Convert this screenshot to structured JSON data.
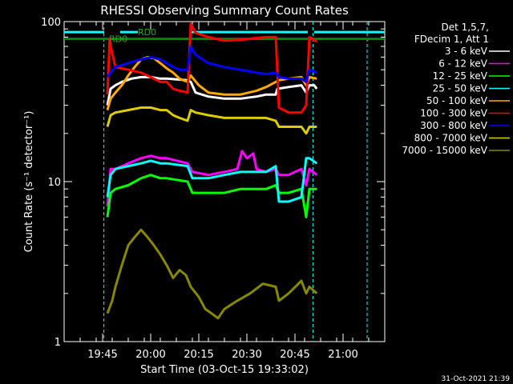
{
  "chart_data": {
    "type": "line",
    "title": "RHESSI Observing Summary Count Rates",
    "xlabel": "Start Time (03-Oct-15 19:33:02)",
    "ylabel": "Count Rate (s⁻¹ detector⁻¹)",
    "y_scale": "log",
    "ylim": [
      1,
      100
    ],
    "yticks": [
      {
        "value": 1,
        "label": "1"
      },
      {
        "value": 10,
        "label": "10"
      },
      {
        "value": 100,
        "label": "100"
      }
    ],
    "x_unit": "minutes since 19:33:02",
    "xlim": [
      0,
      100
    ],
    "xticks": [
      {
        "value": 12,
        "label": "19:45"
      },
      {
        "value": 27,
        "label": "20:00"
      },
      {
        "value": 42,
        "label": "20:15"
      },
      {
        "value": 57,
        "label": "20:30"
      },
      {
        "value": 72,
        "label": "20:45"
      },
      {
        "value": 87,
        "label": "21:00"
      }
    ],
    "legend_header": [
      "Det 1,5,7,",
      "FDecim 1, Att 1"
    ],
    "legend_position": "right",
    "annotations": [
      {
        "text": "RD0",
        "x": 14.0,
        "y": 78,
        "color": "#00bb00"
      },
      {
        "text": "RD0",
        "x": 23.0,
        "y": 86,
        "color": "#00bb00"
      }
    ],
    "footer": "31-Oct-2021 21:39",
    "series": [
      {
        "name": "3 - 6 keV",
        "color": "#ffffff",
        "x": [
          13.5,
          14.5,
          16,
          18,
          21,
          24,
          27,
          30,
          32,
          38.5,
          39.5,
          41,
          45,
          50,
          55,
          60,
          63,
          66,
          66.5,
          70,
          74,
          75.5,
          76.5,
          78,
          78.8
        ],
        "y": [
          30,
          38,
          40,
          42,
          44,
          45,
          45,
          44,
          44,
          43,
          42,
          36,
          34,
          33,
          33,
          34,
          35,
          35,
          38,
          39,
          40,
          36,
          40,
          40,
          38
        ]
      },
      {
        "name": "6 - 12 keV",
        "color": "#ff00ff",
        "x": [
          13.5,
          14.5,
          16,
          20,
          24,
          27,
          30,
          32,
          38.5,
          40,
          45,
          50,
          54,
          55.5,
          57,
          59,
          60,
          63,
          66,
          67,
          70,
          74,
          75.5,
          76.5,
          78.8
        ],
        "y": [
          7,
          12,
          12,
          13,
          14,
          14.5,
          14,
          14,
          13,
          11.5,
          11,
          11.5,
          12,
          15.5,
          14,
          15,
          12,
          11.5,
          12,
          11,
          11,
          12,
          9.5,
          12,
          11
        ]
      },
      {
        "name": "12 - 25 keV",
        "color": "#00ff00",
        "x": [
          13.5,
          14.5,
          16,
          20,
          24,
          27,
          30,
          32,
          38.5,
          40,
          45,
          50,
          55,
          60,
          63,
          66,
          67,
          70,
          74,
          75.5,
          76.5,
          78.8
        ],
        "y": [
          6,
          8.5,
          9,
          9.5,
          10.5,
          11,
          10.5,
          10.5,
          10,
          8.5,
          8.5,
          8.5,
          9,
          9,
          9,
          9.5,
          8.5,
          8.5,
          9,
          6,
          9,
          9
        ]
      },
      {
        "name": "25 - 50 keV",
        "color": "#00ffff",
        "x": [
          13.5,
          14.5,
          16,
          20,
          24,
          27,
          30,
          32,
          38.5,
          40,
          45,
          50,
          55,
          60,
          63,
          66,
          67,
          70,
          74,
          75.5,
          76.5,
          78.8
        ],
        "y": [
          8,
          11,
          12,
          12.5,
          13,
          13.5,
          13,
          13,
          12.5,
          10.5,
          10.5,
          11,
          11.5,
          11.5,
          11.5,
          12.5,
          7.5,
          7.5,
          8,
          14,
          14,
          13
        ]
      },
      {
        "name": "50 - 100 keV",
        "color": "#ffaa00",
        "x": [
          13.5,
          14.5,
          16,
          18,
          20,
          22,
          24,
          26,
          28,
          30,
          32,
          34,
          36,
          38.5,
          39.5,
          42,
          45,
          50,
          55,
          60,
          63,
          66,
          67,
          70,
          74,
          75.5,
          76.5,
          78.8
        ],
        "y": [
          28,
          33,
          36,
          40,
          46,
          52,
          58,
          60,
          59,
          55,
          51,
          48,
          44,
          42,
          46,
          40,
          36,
          35,
          35,
          37,
          39,
          42,
          43,
          44,
          45,
          40,
          45,
          44
        ]
      },
      {
        "name": "100 - 300 keV",
        "color": "#ff0000",
        "x": [
          13.5,
          14.2,
          14.5,
          16,
          20,
          24,
          27,
          30,
          32,
          34,
          36,
          38.5,
          39.5,
          41,
          45,
          50,
          55,
          60,
          63,
          66,
          67,
          70,
          74,
          75.5,
          76.5,
          78.8
        ],
        "y": [
          35,
          78,
          70,
          52,
          50,
          48,
          45,
          42,
          42,
          38,
          37,
          36,
          97,
          85,
          80,
          76,
          77,
          79,
          80,
          80,
          29,
          27,
          27,
          30,
          80,
          75
        ]
      },
      {
        "name": "300 - 800 keV",
        "color": "#0000ff",
        "x": [
          13.5,
          14.5,
          16,
          20,
          24,
          27,
          30,
          32,
          34,
          36,
          38.5,
          39.5,
          41,
          45,
          50,
          55,
          60,
          63,
          66,
          67,
          70,
          74,
          75.5,
          76.5,
          78.8
        ],
        "y": [
          45,
          48,
          52,
          55,
          58,
          60,
          58,
          55,
          52,
          50,
          50,
          70,
          62,
          55,
          52,
          50,
          48,
          47,
          48,
          45,
          44,
          44,
          42,
          50,
          48
        ]
      },
      {
        "name": "800 - 7000 keV",
        "color": "#ddcc00",
        "x": [
          13.5,
          14.5,
          16,
          20,
          24,
          27,
          30,
          32,
          34,
          36,
          38.5,
          39.5,
          41,
          45,
          50,
          55,
          60,
          63,
          66,
          67,
          70,
          74,
          75.5,
          76.5,
          78.8
        ],
        "y": [
          22,
          26,
          27,
          28,
          29,
          29,
          28,
          28,
          26,
          25,
          24,
          28,
          27,
          26,
          25,
          25,
          25,
          25,
          24,
          22,
          22,
          22,
          20,
          22,
          22
        ]
      },
      {
        "name": "7000 - 15000 keV",
        "color": "#888800",
        "x": [
          13.5,
          15,
          16,
          18,
          20,
          22,
          24,
          26,
          28,
          30,
          32,
          34,
          36,
          38,
          39.5,
          42,
          44,
          46,
          48,
          50,
          54,
          58,
          62,
          66,
          67,
          70,
          74,
          75.5,
          76.5,
          78.8
        ],
        "y": [
          1.5,
          1.8,
          2.2,
          3.0,
          4.0,
          4.5,
          5.0,
          4.5,
          4.0,
          3.5,
          3.0,
          2.5,
          2.8,
          2.6,
          2.2,
          1.9,
          1.6,
          1.5,
          1.4,
          1.6,
          1.8,
          2.0,
          2.3,
          2.2,
          1.8,
          2.0,
          2.4,
          2.0,
          2.2,
          2.0
        ]
      }
    ],
    "horizontal_lines": [
      {
        "color": "#00ffff",
        "y": 86,
        "segments": [
          [
            0,
            12.5
          ],
          [
            17.5,
            23
          ],
          [
            39,
            76
          ],
          [
            78,
            100
          ]
        ]
      },
      {
        "color": "#008800",
        "y": 78,
        "segments": [
          [
            0,
            100
          ]
        ]
      }
    ],
    "vertical_lines": [
      {
        "color": "#00ffff",
        "x": 12.4,
        "dashed": true
      },
      {
        "color": "#00ffff",
        "x": 77.6,
        "dashed": true
      },
      {
        "color": "#00ffff",
        "x": 94.5,
        "dashed": true
      }
    ]
  }
}
